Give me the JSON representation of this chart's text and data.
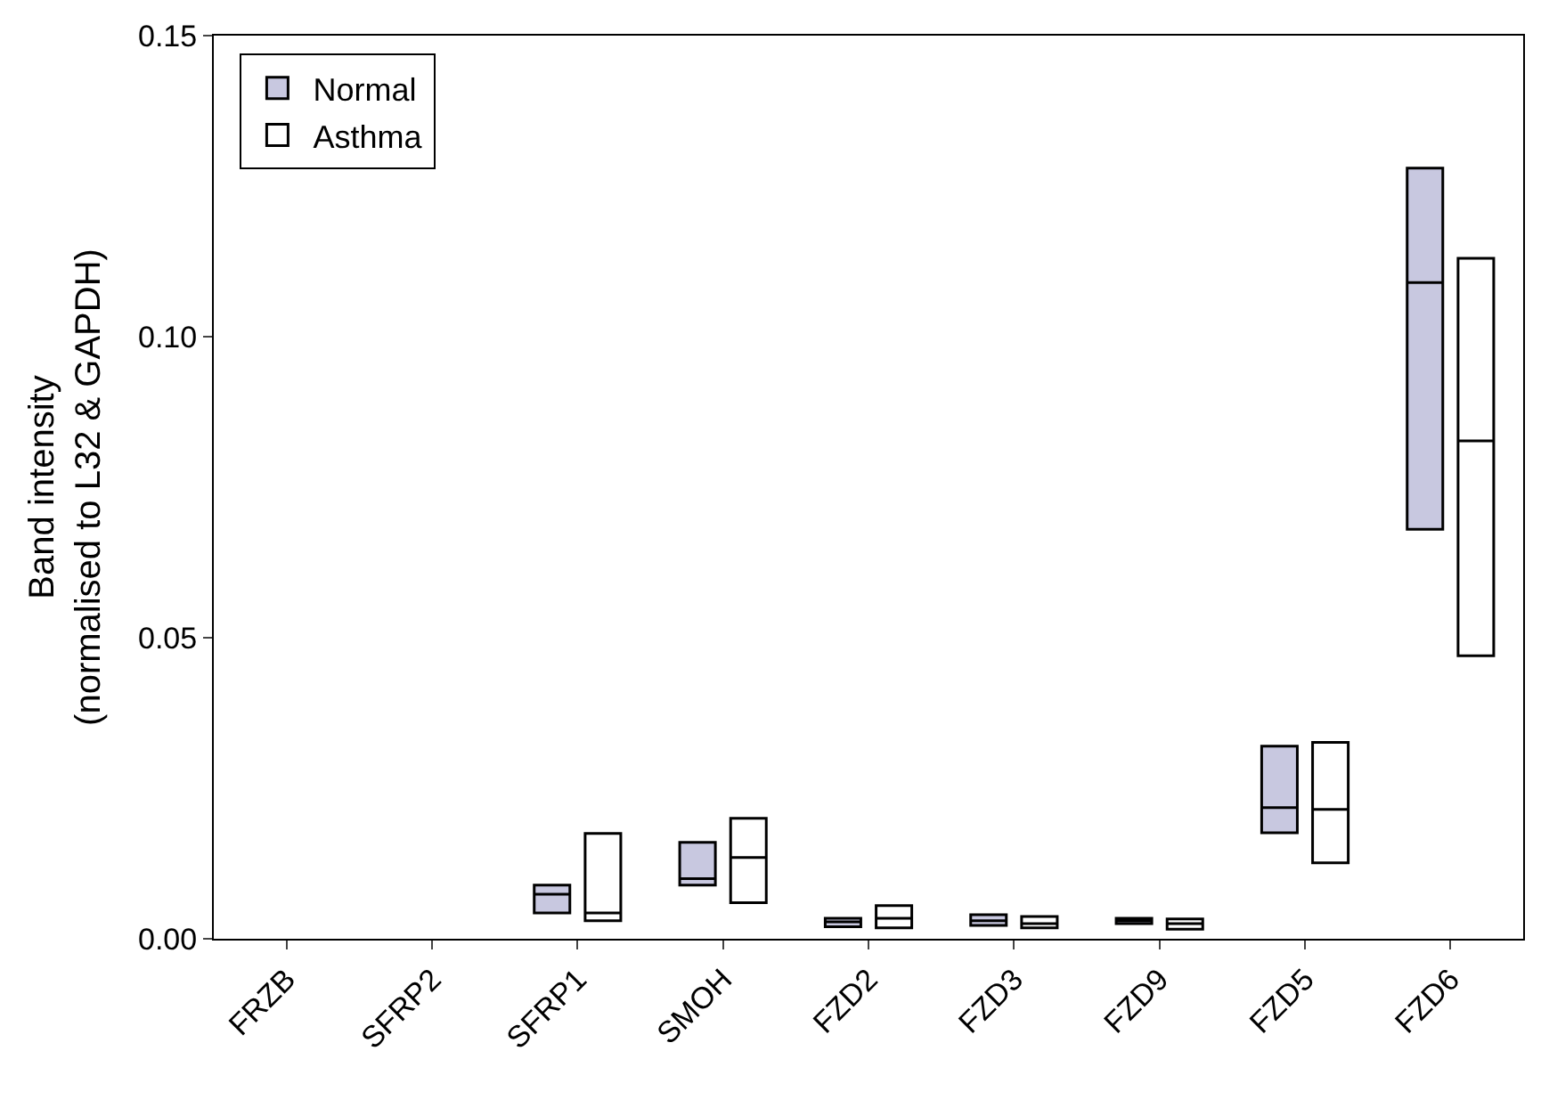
{
  "chart_data": {
    "type": "box",
    "ylabel": "Band intensity\n(normalised to L32 & GAPDH)",
    "categories": [
      "FRZB",
      "SFRP2",
      "SFRP1",
      "SMOH",
      "FZD2",
      "FZD3",
      "FZD9",
      "FZD5",
      "FZD6"
    ],
    "series": [
      {
        "name": "Normal",
        "color": "#c8c8e0",
        "boxes": [
          null,
          null,
          {
            "q1": 0.0043,
            "median": 0.0074,
            "q3": 0.0089
          },
          {
            "q1": 0.0089,
            "median": 0.01,
            "q3": 0.016
          },
          {
            "q1": 0.002,
            "median": 0.0028,
            "q3": 0.0034
          },
          {
            "q1": 0.0022,
            "median": 0.003,
            "q3": 0.004
          },
          {
            "q1": 0.0025,
            "median": 0.003,
            "q3": 0.0034
          },
          {
            "q1": 0.0176,
            "median": 0.0218,
            "q3": 0.032
          },
          {
            "q1": 0.068,
            "median": 0.109,
            "q3": 0.128
          }
        ]
      },
      {
        "name": "Asthma",
        "color": "#ffffff",
        "boxes": [
          null,
          null,
          {
            "q1": 0.003,
            "median": 0.0043,
            "q3": 0.0175
          },
          {
            "q1": 0.006,
            "median": 0.0135,
            "q3": 0.02
          },
          {
            "q1": 0.0018,
            "median": 0.0034,
            "q3": 0.0055
          },
          {
            "q1": 0.0018,
            "median": 0.0025,
            "q3": 0.0037
          },
          {
            "q1": 0.0016,
            "median": 0.0025,
            "q3": 0.0033
          },
          {
            "q1": 0.0126,
            "median": 0.0215,
            "q3": 0.0326
          },
          {
            "q1": 0.047,
            "median": 0.0827,
            "q3": 0.113
          }
        ]
      }
    ],
    "ylim": [
      0,
      0.15
    ],
    "yticks": [
      {
        "value": 0,
        "label": "0.00"
      },
      {
        "value": 0.05,
        "label": "0.05"
      },
      {
        "value": 0.1,
        "label": "0.10"
      },
      {
        "value": 0.15,
        "label": "0.15"
      }
    ],
    "legend": "top left"
  }
}
